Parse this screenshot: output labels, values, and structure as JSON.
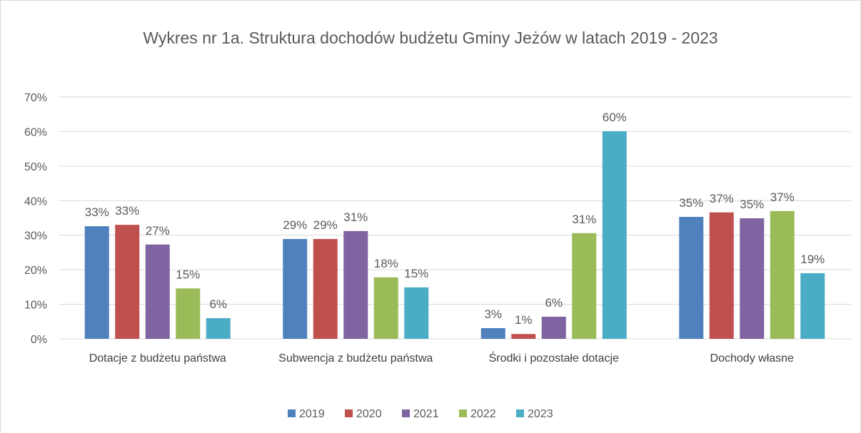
{
  "chart_data": {
    "type": "bar",
    "title": "Wykres nr 1a. Struktura dochodów budżetu Gminy Jeżów w latach 2019 - 2023",
    "categories": [
      "Dotacje z budżetu państwa",
      "Subwencja z budżetu państwa",
      "Środki i pozostałe dotacje",
      "Dochody własne"
    ],
    "series": [
      {
        "name": "2019",
        "color": "#4f81bd",
        "values": [
          32.6,
          28.9,
          3.1,
          35.3
        ],
        "value_labels": [
          "33%",
          "29%",
          "3%",
          "35%"
        ]
      },
      {
        "name": "2020",
        "color": "#c0504d",
        "values": [
          33.0,
          28.9,
          1.4,
          36.6
        ],
        "value_labels": [
          "33%",
          "29%",
          "1%",
          "37%"
        ]
      },
      {
        "name": "2021",
        "color": "#8064a2",
        "values": [
          27.3,
          31.2,
          6.4,
          34.9
        ],
        "value_labels": [
          "27%",
          "31%",
          "6%",
          "35%"
        ]
      },
      {
        "name": "2022",
        "color": "#9bbb59",
        "values": [
          14.6,
          17.8,
          30.6,
          37.0
        ],
        "value_labels": [
          "15%",
          "18%",
          "31%",
          "37%"
        ]
      },
      {
        "name": "2023",
        "color": "#4bacc6",
        "values": [
          6.0,
          14.9,
          60.1,
          19.0
        ],
        "value_labels": [
          "6%",
          "15%",
          "60%",
          "19%"
        ]
      }
    ],
    "ylim": [
      0,
      70
    ],
    "yticks": [
      {
        "value": 0,
        "label": "0%"
      },
      {
        "value": 10,
        "label": "10%"
      },
      {
        "value": 20,
        "label": "20%"
      },
      {
        "value": 30,
        "label": "30%"
      },
      {
        "value": 40,
        "label": "40%"
      },
      {
        "value": 50,
        "label": "50%"
      },
      {
        "value": 60,
        "label": "60%"
      },
      {
        "value": 70,
        "label": "70%"
      }
    ],
    "grid": true,
    "legend": "bottom"
  }
}
